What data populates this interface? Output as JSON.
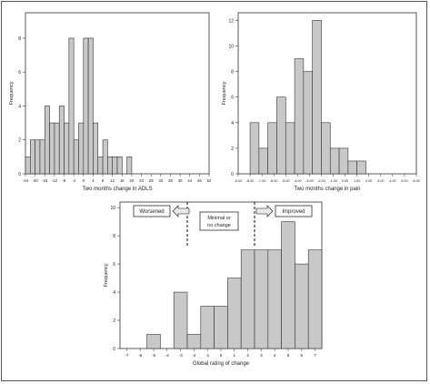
{
  "chart_data": [
    {
      "type": "bar",
      "xlabel": "Two months change in ADLS",
      "ylabel": "Frequency",
      "ylim": [
        0,
        9.5
      ],
      "yticks": [
        0,
        2,
        4,
        6,
        8
      ],
      "xlim": [
        -24,
        52
      ],
      "xticks": [
        -24,
        -20,
        -16,
        -12,
        -8,
        -4,
        0,
        4,
        8,
        12,
        16,
        20,
        24,
        28,
        32,
        36,
        40,
        44,
        48,
        52
      ],
      "bin_width": 2,
      "bin_edges_start": -24,
      "values": [
        1,
        2,
        2,
        2,
        4,
        3,
        3,
        4,
        3,
        8,
        2,
        3,
        8,
        8,
        3,
        1,
        2,
        1,
        1,
        1,
        0,
        1
      ],
      "grid": false
    },
    {
      "type": "bar",
      "xlabel": "Two months change in pain",
      "ylabel": "Frequency",
      "ylim": [
        0,
        12.6
      ],
      "yticks": [
        0,
        2,
        4,
        6,
        8,
        10,
        12
      ],
      "xlim": [
        -9.0,
        6.0
      ],
      "xticks": [
        -9.0,
        -8.0,
        -7.0,
        -6.0,
        -5.0,
        -4.0,
        -3.0,
        -2.0,
        -1.0,
        0.0,
        1.0,
        2.0,
        3.0,
        4.0,
        5.0,
        6.0
      ],
      "xtick_labels": [
        "-9.00",
        "-8.00",
        "-7.00",
        "-6.00",
        "-5.00",
        "-4.00",
        "-3.00",
        "-2.00",
        "-1.00",
        "0.00",
        "1.00",
        "2.00",
        "3.00",
        "4.00",
        "5.00",
        "6.00"
      ],
      "bin_width": 0.75,
      "bin_edges_start": -8.0,
      "values": [
        4,
        2,
        4,
        6,
        4,
        9,
        8,
        12,
        4,
        2,
        2,
        1,
        1
      ],
      "grid": false
    },
    {
      "type": "bar",
      "xlabel": "Global rating of change",
      "ylabel": "Frequency",
      "ylim": [
        0,
        10.4
      ],
      "yticks": [
        0,
        2,
        4,
        6,
        8,
        10
      ],
      "categories": [
        -7,
        -6,
        -5,
        -4,
        -3,
        -2,
        -1,
        0,
        1,
        2,
        3,
        4,
        5,
        6,
        7
      ],
      "values": [
        0,
        0,
        1,
        0,
        4,
        1,
        3,
        3,
        5,
        7,
        7,
        7,
        9,
        6,
        7
      ],
      "dashed_lines_at": [
        -2.5,
        2.5
      ],
      "annotations": {
        "worsened": "Worsened",
        "minimal_line1": "Minimal or",
        "minimal_line2": "no change",
        "improved": "Improved"
      },
      "grid": false
    }
  ],
  "colors": {
    "bar_fill": "#c8c8c8",
    "bar_stroke": "#333333",
    "axis": "#333333",
    "arrow_fill": "#e8e8e8"
  }
}
